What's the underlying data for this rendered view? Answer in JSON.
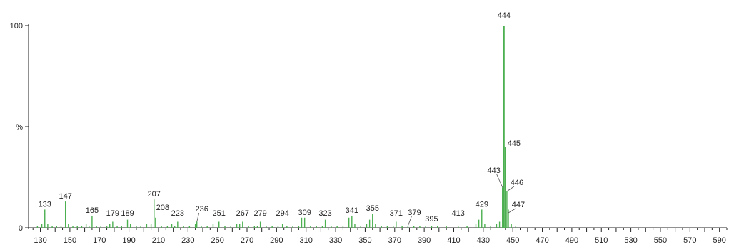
{
  "chart_data": {
    "type": "bar",
    "title": "",
    "xlabel": "",
    "ylabel": "%",
    "xlim": [
      122,
      595
    ],
    "ylim": [
      0,
      100
    ],
    "colors": {
      "peaks": "#4caf50",
      "axis": "#222222",
      "leader": "#555555"
    },
    "y_ticks": [
      {
        "value": 0,
        "label": "0"
      },
      {
        "value": 50,
        "label": "%"
      },
      {
        "value": 100,
        "label": "100"
      }
    ],
    "x_ticks": [
      "130",
      "150",
      "170",
      "190",
      "210",
      "230",
      "250",
      "270",
      "290",
      "310",
      "330",
      "350",
      "370",
      "390",
      "410",
      "430",
      "450",
      "470",
      "490",
      "510",
      "530",
      "550",
      "570",
      "590"
    ],
    "peaks": [
      {
        "x": 128,
        "y": 1
      },
      {
        "x": 131,
        "y": 2
      },
      {
        "x": 133,
        "y": 9,
        "label": "133"
      },
      {
        "x": 135,
        "y": 2
      },
      {
        "x": 138,
        "y": 1
      },
      {
        "x": 141,
        "y": 1
      },
      {
        "x": 144,
        "y": 1
      },
      {
        "x": 147,
        "y": 13,
        "label": "147"
      },
      {
        "x": 149,
        "y": 2
      },
      {
        "x": 152,
        "y": 1
      },
      {
        "x": 155,
        "y": 1
      },
      {
        "x": 158,
        "y": 1
      },
      {
        "x": 161,
        "y": 2
      },
      {
        "x": 163,
        "y": 1
      },
      {
        "x": 165,
        "y": 6,
        "label": "165"
      },
      {
        "x": 168,
        "y": 1
      },
      {
        "x": 171,
        "y": 1
      },
      {
        "x": 175,
        "y": 1
      },
      {
        "x": 177,
        "y": 2
      },
      {
        "x": 179,
        "y": 3,
        "label": "179"
      },
      {
        "x": 182,
        "y": 1
      },
      {
        "x": 185,
        "y": 1
      },
      {
        "x": 189,
        "y": 4,
        "label": "189"
      },
      {
        "x": 191,
        "y": 2
      },
      {
        "x": 195,
        "y": 1
      },
      {
        "x": 198,
        "y": 1
      },
      {
        "x": 202,
        "y": 2
      },
      {
        "x": 205,
        "y": 2
      },
      {
        "x": 207,
        "y": 14,
        "label": "207"
      },
      {
        "x": 208,
        "y": 5,
        "label": "208"
      },
      {
        "x": 212,
        "y": 1
      },
      {
        "x": 216,
        "y": 1
      },
      {
        "x": 219,
        "y": 2
      },
      {
        "x": 221,
        "y": 1
      },
      {
        "x": 223,
        "y": 3,
        "label": "223"
      },
      {
        "x": 227,
        "y": 1
      },
      {
        "x": 231,
        "y": 1
      },
      {
        "x": 235,
        "y": 2
      },
      {
        "x": 236,
        "y": 3,
        "label": "236"
      },
      {
        "x": 239,
        "y": 1
      },
      {
        "x": 243,
        "y": 1
      },
      {
        "x": 247,
        "y": 2
      },
      {
        "x": 251,
        "y": 3,
        "label": "251"
      },
      {
        "x": 255,
        "y": 1
      },
      {
        "x": 259,
        "y": 1
      },
      {
        "x": 263,
        "y": 2
      },
      {
        "x": 265,
        "y": 2
      },
      {
        "x": 267,
        "y": 3,
        "label": "267"
      },
      {
        "x": 271,
        "y": 1
      },
      {
        "x": 275,
        "y": 1
      },
      {
        "x": 277,
        "y": 1
      },
      {
        "x": 279,
        "y": 3,
        "label": "279"
      },
      {
        "x": 283,
        "y": 1
      },
      {
        "x": 287,
        "y": 1
      },
      {
        "x": 291,
        "y": 1
      },
      {
        "x": 294,
        "y": 2,
        "label": "294"
      },
      {
        "x": 297,
        "y": 1
      },
      {
        "x": 301,
        "y": 1
      },
      {
        "x": 305,
        "y": 1
      },
      {
        "x": 307,
        "y": 5
      },
      {
        "x": 309,
        "y": 5,
        "label": "309"
      },
      {
        "x": 313,
        "y": 1
      },
      {
        "x": 317,
        "y": 1
      },
      {
        "x": 321,
        "y": 1
      },
      {
        "x": 323,
        "y": 4,
        "label": "323"
      },
      {
        "x": 327,
        "y": 1
      },
      {
        "x": 331,
        "y": 1
      },
      {
        "x": 335,
        "y": 1
      },
      {
        "x": 339,
        "y": 5
      },
      {
        "x": 341,
        "y": 6,
        "label": "341"
      },
      {
        "x": 343,
        "y": 2
      },
      {
        "x": 347,
        "y": 1
      },
      {
        "x": 351,
        "y": 2
      },
      {
        "x": 353,
        "y": 4
      },
      {
        "x": 355,
        "y": 7,
        "label": "355"
      },
      {
        "x": 357,
        "y": 2
      },
      {
        "x": 361,
        "y": 1
      },
      {
        "x": 365,
        "y": 1
      },
      {
        "x": 369,
        "y": 1
      },
      {
        "x": 371,
        "y": 3,
        "label": "371"
      },
      {
        "x": 375,
        "y": 1
      },
      {
        "x": 379,
        "y": 1,
        "label": "379"
      },
      {
        "x": 383,
        "y": 1
      },
      {
        "x": 387,
        "y": 1
      },
      {
        "x": 391,
        "y": 1
      },
      {
        "x": 395,
        "y": 1,
        "label": "395"
      },
      {
        "x": 399,
        "y": 1
      },
      {
        "x": 405,
        "y": 1
      },
      {
        "x": 413,
        "y": 1,
        "label": "413"
      },
      {
        "x": 419,
        "y": 1
      },
      {
        "x": 425,
        "y": 2
      },
      {
        "x": 427,
        "y": 4
      },
      {
        "x": 429,
        "y": 9,
        "label": "429"
      },
      {
        "x": 431,
        "y": 2
      },
      {
        "x": 435,
        "y": 1
      },
      {
        "x": 439,
        "y": 2
      },
      {
        "x": 441,
        "y": 3
      },
      {
        "x": 443,
        "y": 20,
        "label": "443"
      },
      {
        "x": 444,
        "y": 100,
        "label": "444"
      },
      {
        "x": 445,
        "y": 40,
        "label": "445"
      },
      {
        "x": 446,
        "y": 18,
        "label": "446"
      },
      {
        "x": 447,
        "y": 9,
        "label": "447"
      },
      {
        "x": 449,
        "y": 2
      },
      {
        "x": 452,
        "y": 1
      }
    ]
  }
}
